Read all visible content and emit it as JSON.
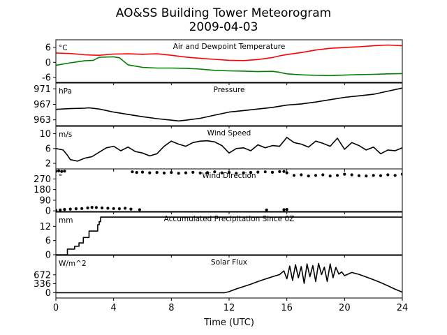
{
  "figure": {
    "title": "AO&SS Building Tower Meteorogram",
    "subtitle": "2009-04-03",
    "xlabel": "Time (UTC)",
    "xticks": [
      0,
      4,
      8,
      12,
      16,
      20,
      24
    ],
    "xlim": [
      0,
      24
    ]
  },
  "chart_data": [
    {
      "type": "line",
      "title": "Air and Dewpoint Temperature",
      "unit": "°C",
      "ylim": [
        -8,
        9
      ],
      "yticks": [
        6,
        0,
        -6
      ],
      "series": [
        {
          "key": "temp",
          "color": "#ff0000",
          "x": [
            0,
            1,
            2,
            2.5,
            3,
            4,
            5,
            6,
            7,
            8,
            9,
            10,
            11,
            12,
            13,
            14,
            15,
            15.5,
            16,
            17,
            18,
            19,
            20,
            21,
            22,
            23,
            24
          ],
          "y": [
            3.7,
            3.5,
            3,
            2.9,
            2.8,
            3.3,
            3.4,
            3.2,
            3.4,
            2.8,
            2.1,
            1.6,
            1.2,
            0.8,
            0.7,
            1.1,
            1.9,
            2.6,
            3.1,
            3.9,
            4.9,
            5.6,
            5.9,
            6.2,
            6.6,
            6.9,
            6.6
          ]
        },
        {
          "key": "dewpoint",
          "color": "#008000",
          "x": [
            0,
            1,
            1.5,
            2,
            2.6,
            3,
            4,
            4.4,
            5,
            6,
            7,
            8,
            9,
            10,
            11,
            12,
            13,
            14,
            15,
            15.5,
            16,
            17,
            18,
            19,
            20,
            21,
            22,
            23,
            24
          ],
          "y": [
            -1.2,
            -0.2,
            0.2,
            0.6,
            0.8,
            2,
            2.2,
            1.8,
            -1,
            -2,
            -2.3,
            -2.3,
            -2.4,
            -2.7,
            -3.2,
            -3.4,
            -3.5,
            -3.7,
            -3.6,
            -4,
            -4.6,
            -5,
            -5.2,
            -5.3,
            -5.1,
            -4.9,
            -4.8,
            -4.6,
            -4.5
          ]
        }
      ]
    },
    {
      "type": "line",
      "title": "Pressure",
      "unit": "hPa",
      "ylim": [
        961.5,
        972.5
      ],
      "yticks": [
        971,
        967,
        963
      ],
      "series": [
        {
          "key": "pressure",
          "color": "#000000",
          "x": [
            0,
            1,
            2,
            2.3,
            3,
            4,
            5,
            6,
            7,
            8,
            8.5,
            9,
            10,
            11,
            12,
            13,
            14,
            15,
            16,
            17,
            18,
            19,
            20,
            21,
            22,
            23,
            24
          ],
          "y": [
            965.7,
            965.9,
            966,
            966.1,
            965.8,
            965,
            964.4,
            963.8,
            963.3,
            962.9,
            962.7,
            962.9,
            963.4,
            964.2,
            965,
            965.4,
            965.8,
            966.2,
            966.8,
            967.1,
            967.6,
            968.2,
            968.8,
            969.2,
            969.6,
            970.4,
            971.2
          ]
        }
      ]
    },
    {
      "type": "line",
      "title": "Wind Speed",
      "unit": "m/s",
      "ylim": [
        0.5,
        12
      ],
      "yticks": [
        10,
        6,
        2
      ],
      "series": [
        {
          "key": "wind_speed",
          "color": "#000000",
          "x": [
            0,
            0.5,
            0.8,
            1,
            1.5,
            2,
            2.5,
            3,
            3.5,
            4,
            4.5,
            5,
            5.5,
            6,
            6.5,
            7,
            7.5,
            8,
            8.5,
            9,
            9.5,
            10,
            10.5,
            11,
            11.5,
            12,
            12.5,
            13,
            13.5,
            14,
            14.5,
            15,
            15.5,
            16,
            16.5,
            17,
            17.5,
            18,
            18.5,
            19,
            19.5,
            20,
            20.5,
            21,
            21.5,
            22,
            22.5,
            23,
            23.5,
            24
          ],
          "y": [
            6,
            5.6,
            4.2,
            3,
            2.6,
            3.4,
            3.8,
            5,
            6.2,
            6.6,
            5.4,
            6.4,
            5.2,
            4.8,
            4,
            4.6,
            6.6,
            8,
            7.2,
            6.6,
            7.6,
            8,
            8.1,
            7.8,
            6.8,
            4.8,
            6,
            6.2,
            5.4,
            7,
            6.2,
            6.8,
            6.6,
            9,
            7.6,
            7.2,
            6.4,
            8,
            7.4,
            6.6,
            8.8,
            5.8,
            7.6,
            6.8,
            5.6,
            6.4,
            4.6,
            5.6,
            5.4,
            6.2
          ]
        }
      ]
    },
    {
      "type": "scatter",
      "title": "Wind Direction",
      "unit": "°",
      "ylim": [
        -5,
        355
      ],
      "yticks": [
        270,
        180,
        90,
        0
      ],
      "series": [
        {
          "key": "wind_dir_north",
          "color": "#000000",
          "x": [
            0,
            0.2,
            0.4,
            0.6,
            5.3,
            5.6,
            6,
            6.5,
            7,
            7.5,
            8,
            8.5,
            9,
            9.5,
            10,
            10.5,
            11,
            11.5,
            12,
            12.5,
            13,
            13.5,
            14,
            14.5,
            15,
            15.5,
            15.8,
            16,
            16.5,
            17,
            17.5,
            18,
            18.5,
            19,
            19.5,
            20,
            20.5,
            21,
            21.5,
            22,
            22.5,
            23,
            23.5,
            24
          ],
          "y": [
            335,
            338,
            334,
            336,
            330,
            325,
            328,
            322,
            325,
            320,
            325,
            318,
            322,
            326,
            320,
            324,
            330,
            322,
            325,
            318,
            322,
            325,
            328,
            330,
            326,
            332,
            334,
            322,
            300,
            305,
            295,
            300,
            305,
            295,
            300,
            310,
            305,
            298,
            295,
            300,
            298,
            305,
            300,
            310
          ]
        },
        {
          "key": "wind_dir_south",
          "color": "#000000",
          "x": [
            0,
            0.3,
            0.6,
            1,
            1.4,
            1.8,
            2.2,
            2.5,
            2.8,
            3.2,
            3.6,
            4,
            4.4,
            4.8,
            5.2,
            5.8,
            14.6,
            15.8,
            16
          ],
          "y": [
            5,
            8,
            12,
            15,
            18,
            20,
            25,
            30,
            28,
            25,
            22,
            20,
            18,
            22,
            15,
            10,
            8,
            10,
            12
          ]
        }
      ]
    },
    {
      "type": "line",
      "title": "Accumulated Precipitation Since 0Z",
      "unit": "mm",
      "ylim": [
        0,
        18
      ],
      "yticks": [
        12,
        6,
        0
      ],
      "series": [
        {
          "key": "precip",
          "color": "#000000",
          "x": [
            0,
            0.8,
            0.8,
            1.3,
            1.3,
            1.6,
            1.6,
            1.9,
            1.9,
            2.3,
            2.3,
            2.9,
            2.9,
            3,
            3,
            3.1,
            3.1,
            24
          ],
          "y": [
            0,
            0,
            2.4,
            2.4,
            3.6,
            3.6,
            5,
            5,
            7.3,
            7.3,
            10,
            10,
            12.7,
            12.7,
            14,
            14,
            15.9,
            15.9
          ]
        }
      ]
    },
    {
      "type": "line",
      "title": "Solar Flux",
      "unit": "W/m^2",
      "ylim": [
        -200,
        1400
      ],
      "yticks": [
        672,
        336,
        0
      ],
      "series": [
        {
          "key": "solar",
          "color": "#000000",
          "x": [
            0,
            11.7,
            12,
            12.5,
            13,
            13.5,
            14,
            14.5,
            15,
            15.5,
            15.8,
            16,
            16.2,
            16.4,
            16.6,
            16.8,
            17,
            17.2,
            17.4,
            17.6,
            17.8,
            18,
            18.2,
            18.4,
            18.6,
            18.8,
            19,
            19.2,
            19.4,
            19.6,
            19.8,
            20,
            20.5,
            21,
            21.5,
            22,
            22.5,
            23,
            23.5,
            24
          ],
          "y": [
            0,
            0,
            40,
            140,
            230,
            320,
            420,
            510,
            600,
            680,
            820,
            520,
            1000,
            460,
            1050,
            560,
            980,
            350,
            1080,
            600,
            1020,
            420,
            1100,
            680,
            960,
            420,
            1080,
            560,
            950,
            700,
            780,
            640,
            760,
            690,
            590,
            490,
            380,
            260,
            130,
            20
          ]
        }
      ]
    }
  ]
}
